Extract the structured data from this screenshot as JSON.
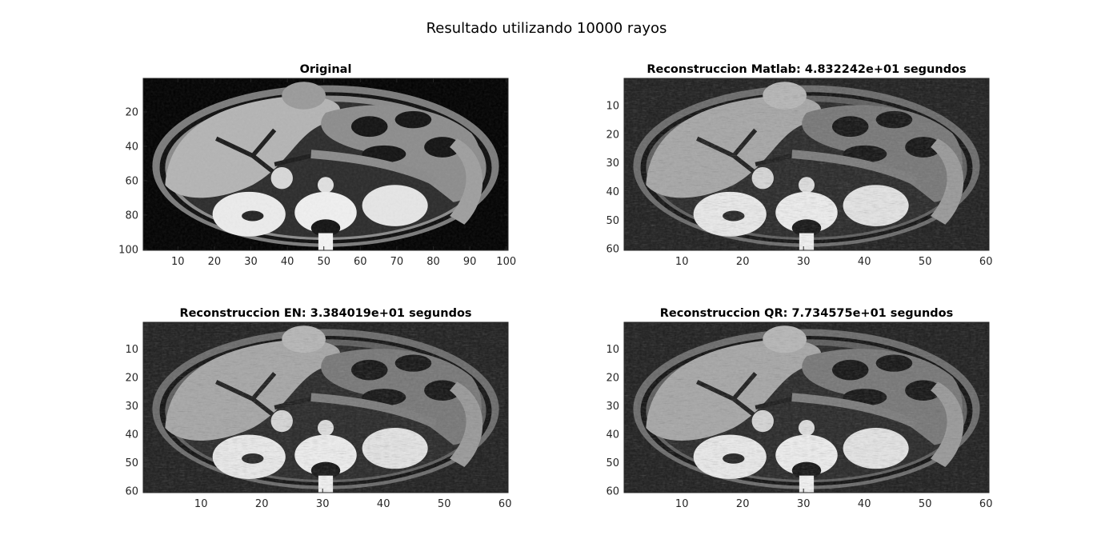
{
  "figure": {
    "suptitle": "Resultado utilizando 10000 rayos"
  },
  "chart_data": [
    {
      "type": "heatmap",
      "title": "Original",
      "colormap": "gray",
      "image_size": [
        100,
        100
      ],
      "xlim": [
        0.5,
        100.5
      ],
      "ylim": [
        100.5,
        0.5
      ],
      "xticks": [
        10,
        20,
        30,
        40,
        50,
        60,
        70,
        80,
        90,
        100
      ],
      "yticks": [
        20,
        40,
        60,
        80,
        100
      ],
      "xlabel": "",
      "ylabel": ""
    },
    {
      "type": "heatmap",
      "title": "Reconstruccion Matlab: 4.832242e+01 segundos",
      "colormap": "gray",
      "image_size": [
        60,
        60
      ],
      "xlim": [
        0.5,
        60.5
      ],
      "ylim": [
        60.5,
        0.5
      ],
      "xticks": [
        10,
        20,
        30,
        40,
        50,
        60
      ],
      "yticks": [
        10,
        20,
        30,
        40,
        50,
        60
      ],
      "xlabel": "",
      "ylabel": ""
    },
    {
      "type": "heatmap",
      "title": "Reconstruccion EN: 3.384019e+01 segundos",
      "colormap": "gray",
      "image_size": [
        60,
        60
      ],
      "xlim": [
        0.5,
        60.5
      ],
      "ylim": [
        60.5,
        0.5
      ],
      "xticks": [
        10,
        20,
        30,
        40,
        50,
        60
      ],
      "yticks": [
        10,
        20,
        30,
        40,
        50,
        60
      ],
      "xlabel": "",
      "ylabel": ""
    },
    {
      "type": "heatmap",
      "title": "Reconstruccion QR: 7.734575e+01 segundos",
      "colormap": "gray",
      "image_size": [
        60,
        60
      ],
      "xlim": [
        0.5,
        60.5
      ],
      "ylim": [
        60.5,
        0.5
      ],
      "xticks": [
        10,
        20,
        30,
        40,
        50,
        60
      ],
      "yticks": [
        10,
        20,
        30,
        40,
        50,
        60
      ],
      "xlabel": "",
      "ylabel": ""
    }
  ]
}
